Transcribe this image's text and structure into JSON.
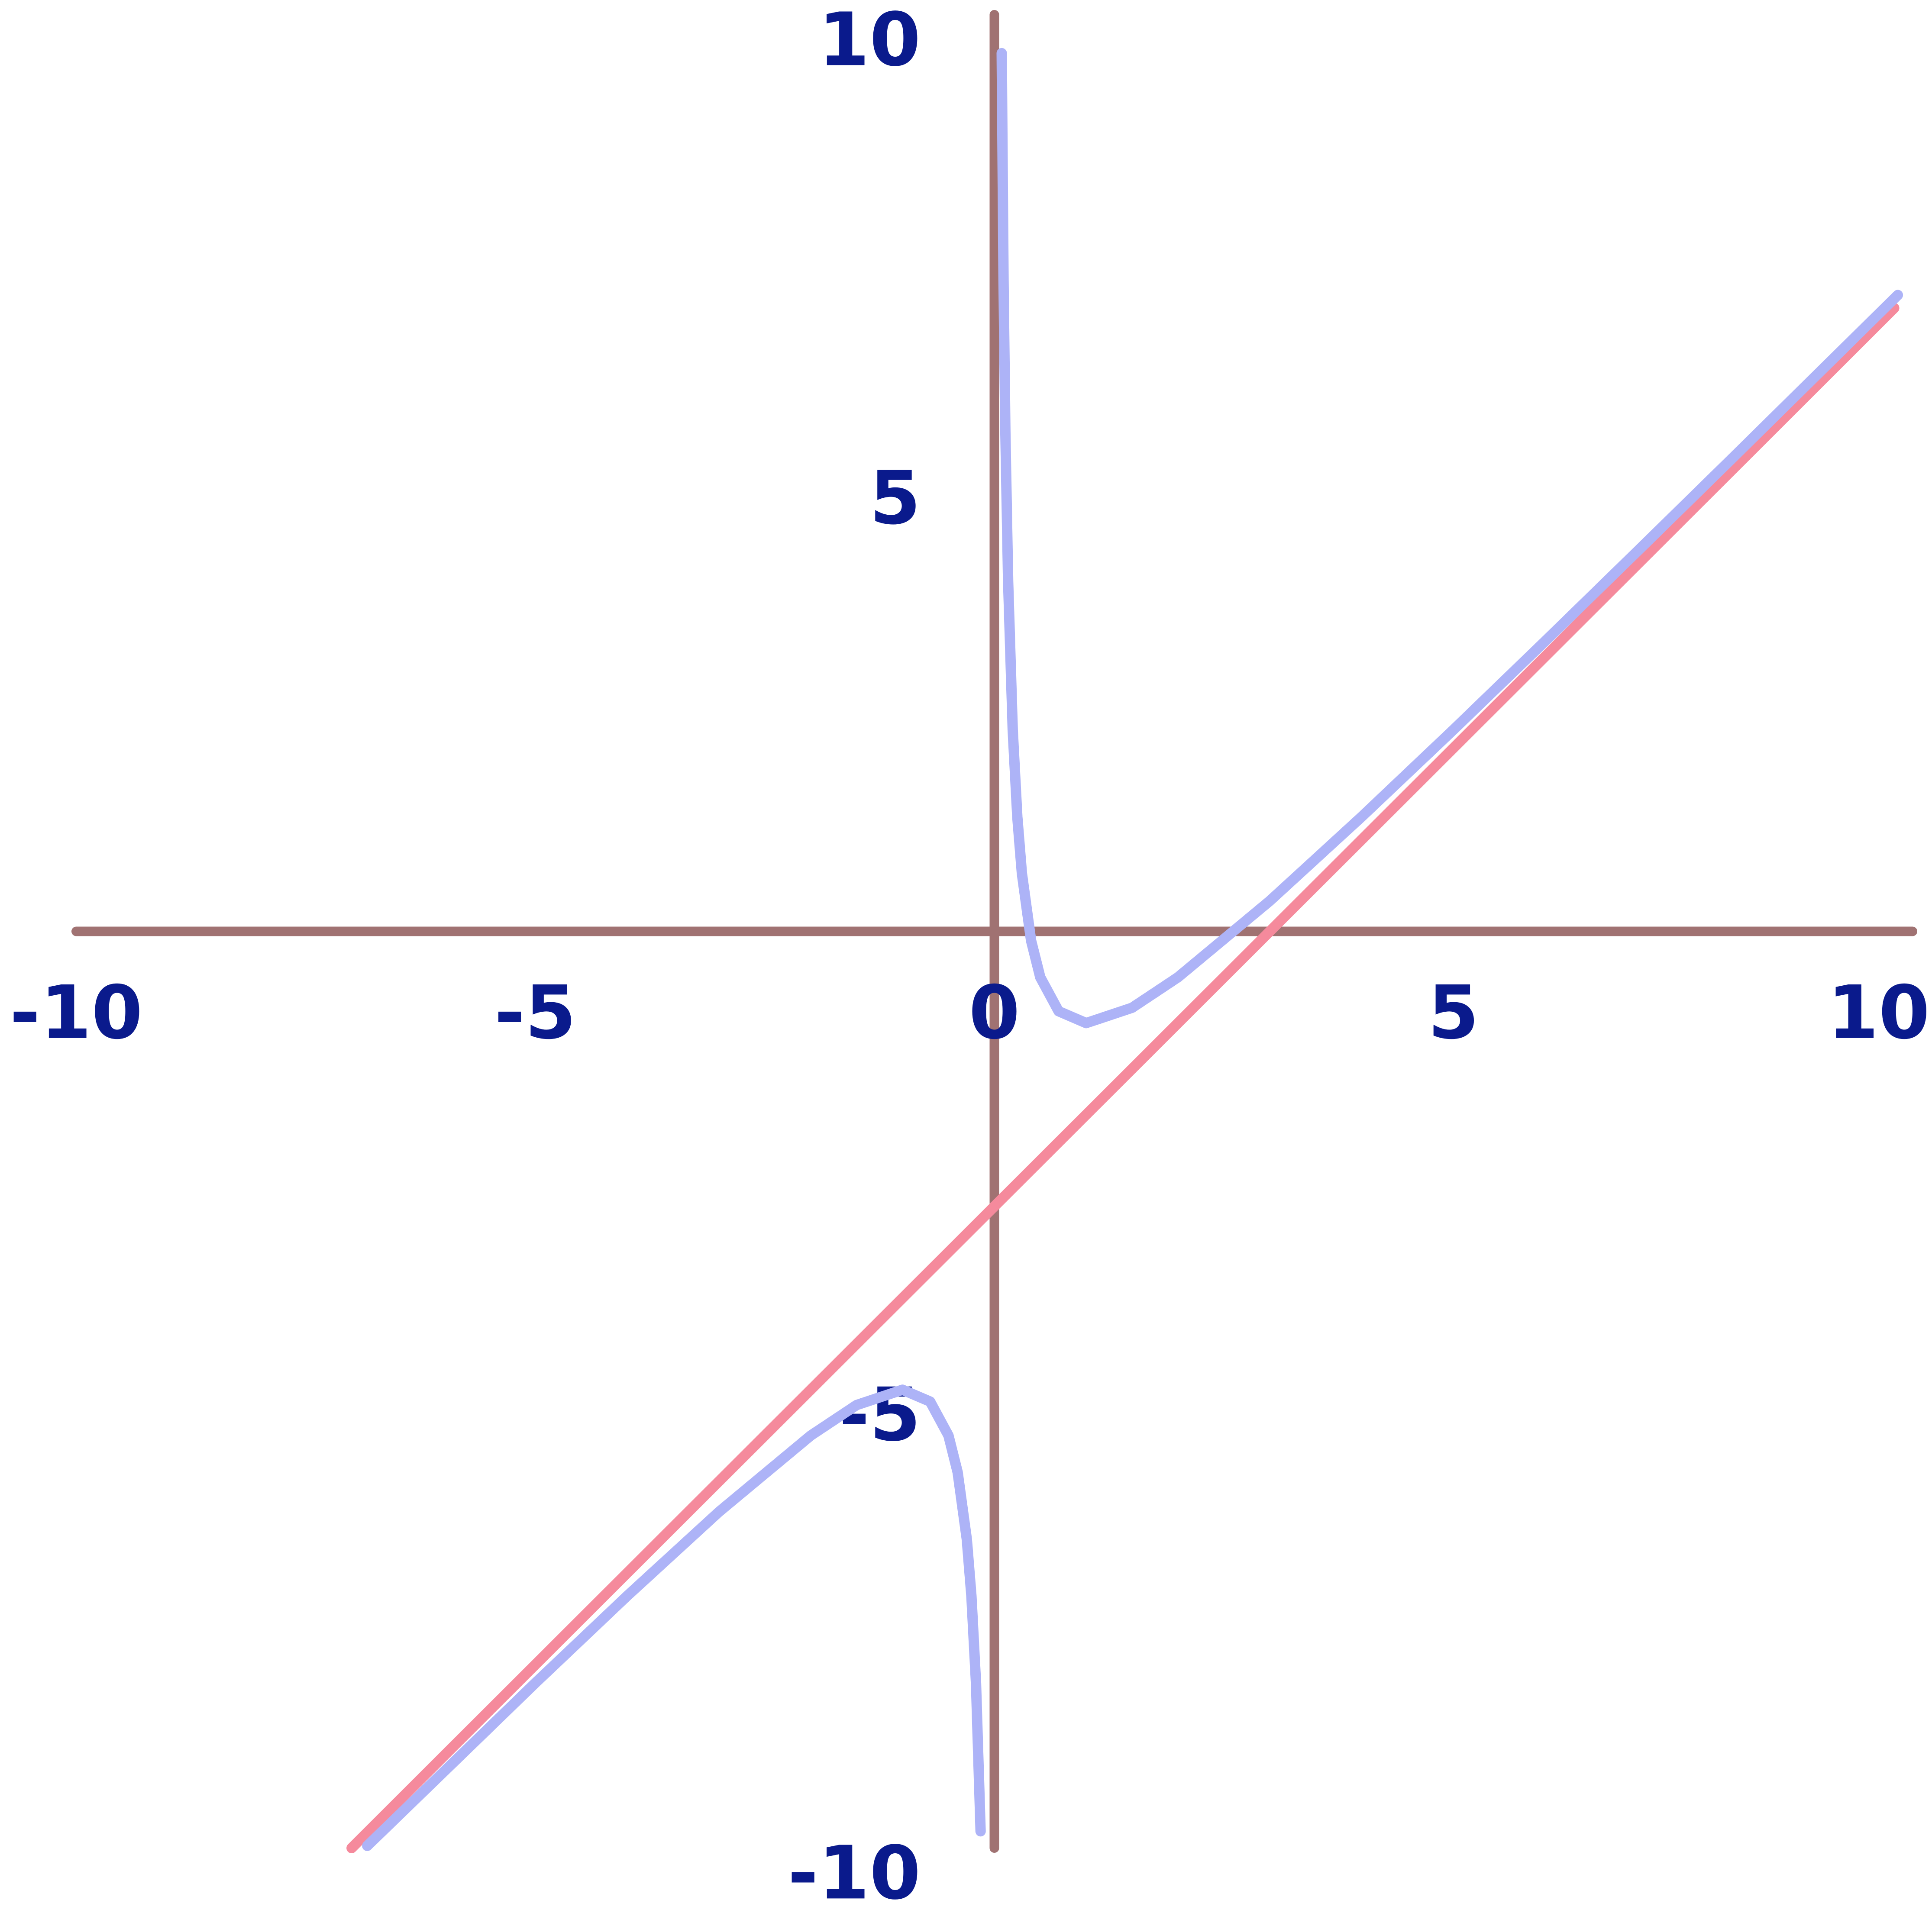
{
  "chart_data": {
    "type": "line",
    "xlim": [
      -10,
      10
    ],
    "ylim": [
      -10,
      10
    ],
    "xticks": [
      -10,
      -5,
      0,
      5,
      10
    ],
    "yticks": [
      -10,
      -5,
      5,
      10
    ],
    "axis_color": "#a07272",
    "label_color": "#0a1a8c",
    "series": [
      {
        "color": "#f58a9c",
        "x": [
          -7,
          9.8
        ],
        "values": [
          -10,
          6.8
        ]
      },
      {
        "color": "#adb3f7",
        "x": [
          -6.83,
          -5,
          -4,
          -3,
          -2,
          -1.5,
          -1,
          -0.7,
          -0.5,
          -0.4,
          -0.3,
          -0.25,
          -0.2,
          -0.15,
          null,
          0.08,
          0.1,
          0.12,
          0.15,
          0.2,
          0.25,
          0.3,
          0.4,
          0.5,
          0.7,
          1,
          1.5,
          2,
          3,
          4,
          5,
          6,
          7,
          8,
          9.84
        ],
        "values": [
          -9.976,
          -8.2,
          -7.25,
          -6.333,
          -5.5,
          -5.167,
          -5,
          -5.129,
          -5.5,
          -5.9,
          -6.633,
          -7.25,
          -8.2,
          -9.817,
          null,
          9.58,
          7.1,
          5.453,
          3.817,
          2.2,
          1.25,
          0.633,
          -0.1,
          -0.5,
          -0.871,
          -1,
          -0.833,
          -0.5,
          0.333,
          1.25,
          2.2,
          3.167,
          4.143,
          5.125,
          6.942
        ]
      }
    ]
  }
}
